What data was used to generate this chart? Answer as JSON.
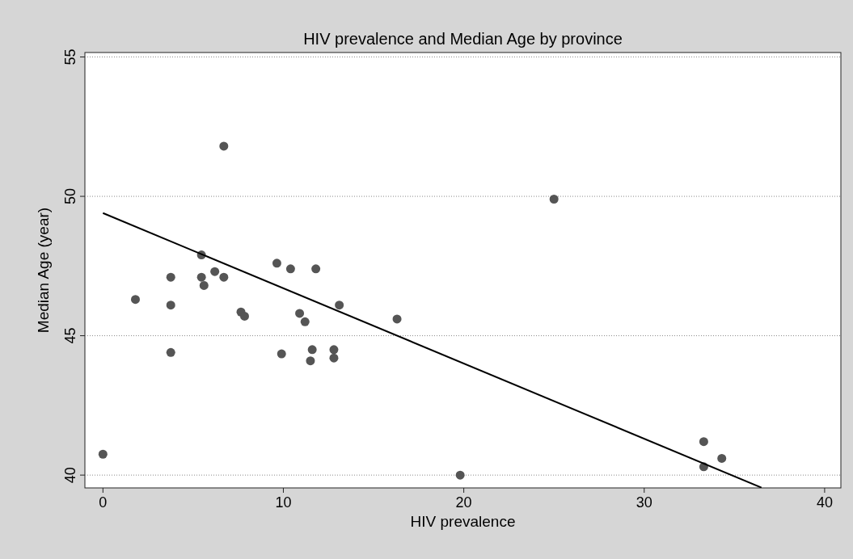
{
  "chart_data": {
    "type": "scatter",
    "title": "HIV prevalence and Median Age by province",
    "xlabel": "HIV prevalence",
    "ylabel": "Median Age (year)",
    "xlim": [
      -1,
      40.9
    ],
    "xticks": [
      0,
      10,
      20,
      30,
      40
    ],
    "ylim": [
      39.54,
      55.16
    ],
    "yticks": [
      40,
      45,
      50,
      55
    ],
    "grid": "y",
    "marker": "circle",
    "series": [
      {
        "color": "#555555",
        "x": [
          0,
          1.8,
          3.76,
          3.76,
          3.76,
          5.46,
          5.46,
          5.6,
          6.2,
          6.7,
          6.7,
          7.65,
          7.85,
          9.64,
          10.4,
          9.9,
          10.9,
          11.8,
          11.2,
          11.5,
          11.6,
          12.8,
          12.8,
          13.1,
          16.3,
          19.8,
          25.0,
          33.3,
          33.3,
          34.3
        ],
        "values": [
          40.75,
          46.3,
          47.1,
          46.1,
          44.4,
          47.9,
          47.1,
          46.8,
          47.3,
          47.1,
          51.8,
          45.85,
          45.7,
          47.6,
          47.4,
          44.35,
          45.8,
          47.4,
          45.5,
          44.1,
          44.5,
          44.5,
          44.2,
          46.1,
          45.6,
          40.0,
          49.9,
          40.3,
          41.2,
          40.6
        ]
      },
      {
        "type": "line",
        "color": "#000000",
        "marker": "none",
        "x": [
          0,
          36.5
        ],
        "values": [
          49.4,
          39.55
        ]
      }
    ]
  }
}
